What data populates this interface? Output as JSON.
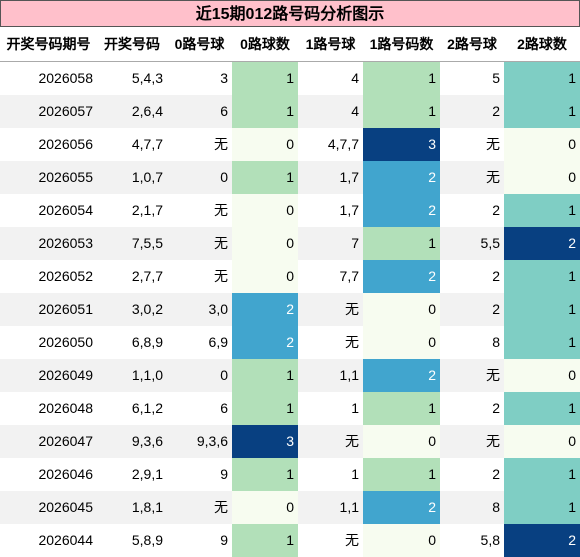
{
  "title": "近15期012路号码分析图示",
  "headers": [
    "开奖号码期号",
    "开奖号码",
    "0路号球",
    "0路球数",
    "1路号球",
    "1路号码数",
    "2路号球",
    "2路球数"
  ],
  "rows": [
    {
      "issue": "2026058",
      "numbers": "5,4,3",
      "r0": "3",
      "c0": "1",
      "r1": "4",
      "c1": "1",
      "r2": "5",
      "c2": "1"
    },
    {
      "issue": "2026057",
      "numbers": "2,6,4",
      "r0": "6",
      "c0": "1",
      "r1": "4",
      "c1": "1",
      "r2": "2",
      "c2": "1"
    },
    {
      "issue": "2026056",
      "numbers": "4,7,7",
      "r0": "无",
      "c0": "0",
      "r1": "4,7,7",
      "c1": "3",
      "r2": "无",
      "c2": "0"
    },
    {
      "issue": "2026055",
      "numbers": "1,0,7",
      "r0": "0",
      "c0": "1",
      "r1": "1,7",
      "c1": "2",
      "r2": "无",
      "c2": "0"
    },
    {
      "issue": "2026054",
      "numbers": "2,1,7",
      "r0": "无",
      "c0": "0",
      "r1": "1,7",
      "c1": "2",
      "r2": "2",
      "c2": "1"
    },
    {
      "issue": "2026053",
      "numbers": "7,5,5",
      "r0": "无",
      "c0": "0",
      "r1": "7",
      "c1": "1",
      "r2": "5,5",
      "c2": "2"
    },
    {
      "issue": "2026052",
      "numbers": "2,7,7",
      "r0": "无",
      "c0": "0",
      "r1": "7,7",
      "c1": "2",
      "r2": "2",
      "c2": "1"
    },
    {
      "issue": "2026051",
      "numbers": "3,0,2",
      "r0": "3,0",
      "c0": "2",
      "r1": "无",
      "c1": "0",
      "r2": "2",
      "c2": "1"
    },
    {
      "issue": "2026050",
      "numbers": "6,8,9",
      "r0": "6,9",
      "c0": "2",
      "r1": "无",
      "c1": "0",
      "r2": "8",
      "c2": "1"
    },
    {
      "issue": "2026049",
      "numbers": "1,1,0",
      "r0": "0",
      "c0": "1",
      "r1": "1,1",
      "c1": "2",
      "r2": "无",
      "c2": "0"
    },
    {
      "issue": "2026048",
      "numbers": "6,1,2",
      "r0": "6",
      "c0": "1",
      "r1": "1",
      "c1": "1",
      "r2": "2",
      "c2": "1"
    },
    {
      "issue": "2026047",
      "numbers": "9,3,6",
      "r0": "9,3,6",
      "c0": "3",
      "r1": "无",
      "c1": "0",
      "r2": "无",
      "c2": "0"
    },
    {
      "issue": "2026046",
      "numbers": "2,9,1",
      "r0": "9",
      "c0": "1",
      "r1": "1",
      "c1": "1",
      "r2": "2",
      "c2": "1"
    },
    {
      "issue": "2026045",
      "numbers": "1,8,1",
      "r0": "无",
      "c0": "0",
      "r1": "1,1",
      "c1": "2",
      "r2": "8",
      "c2": "1"
    },
    {
      "issue": "2026044",
      "numbers": "5,8,9",
      "r0": "9",
      "c0": "1",
      "r1": "无",
      "c1": "0",
      "r2": "5,8",
      "c2": "2"
    }
  ],
  "colors": {
    "title_bg": "#ffc0cb",
    "count_0": "#f7fcf0",
    "count_1": "#b2e0b9",
    "count_2": "#41a5ce",
    "count_3": "#084081",
    "r2_count_1": "#7fcec4",
    "r2_count_2": "#084081"
  }
}
